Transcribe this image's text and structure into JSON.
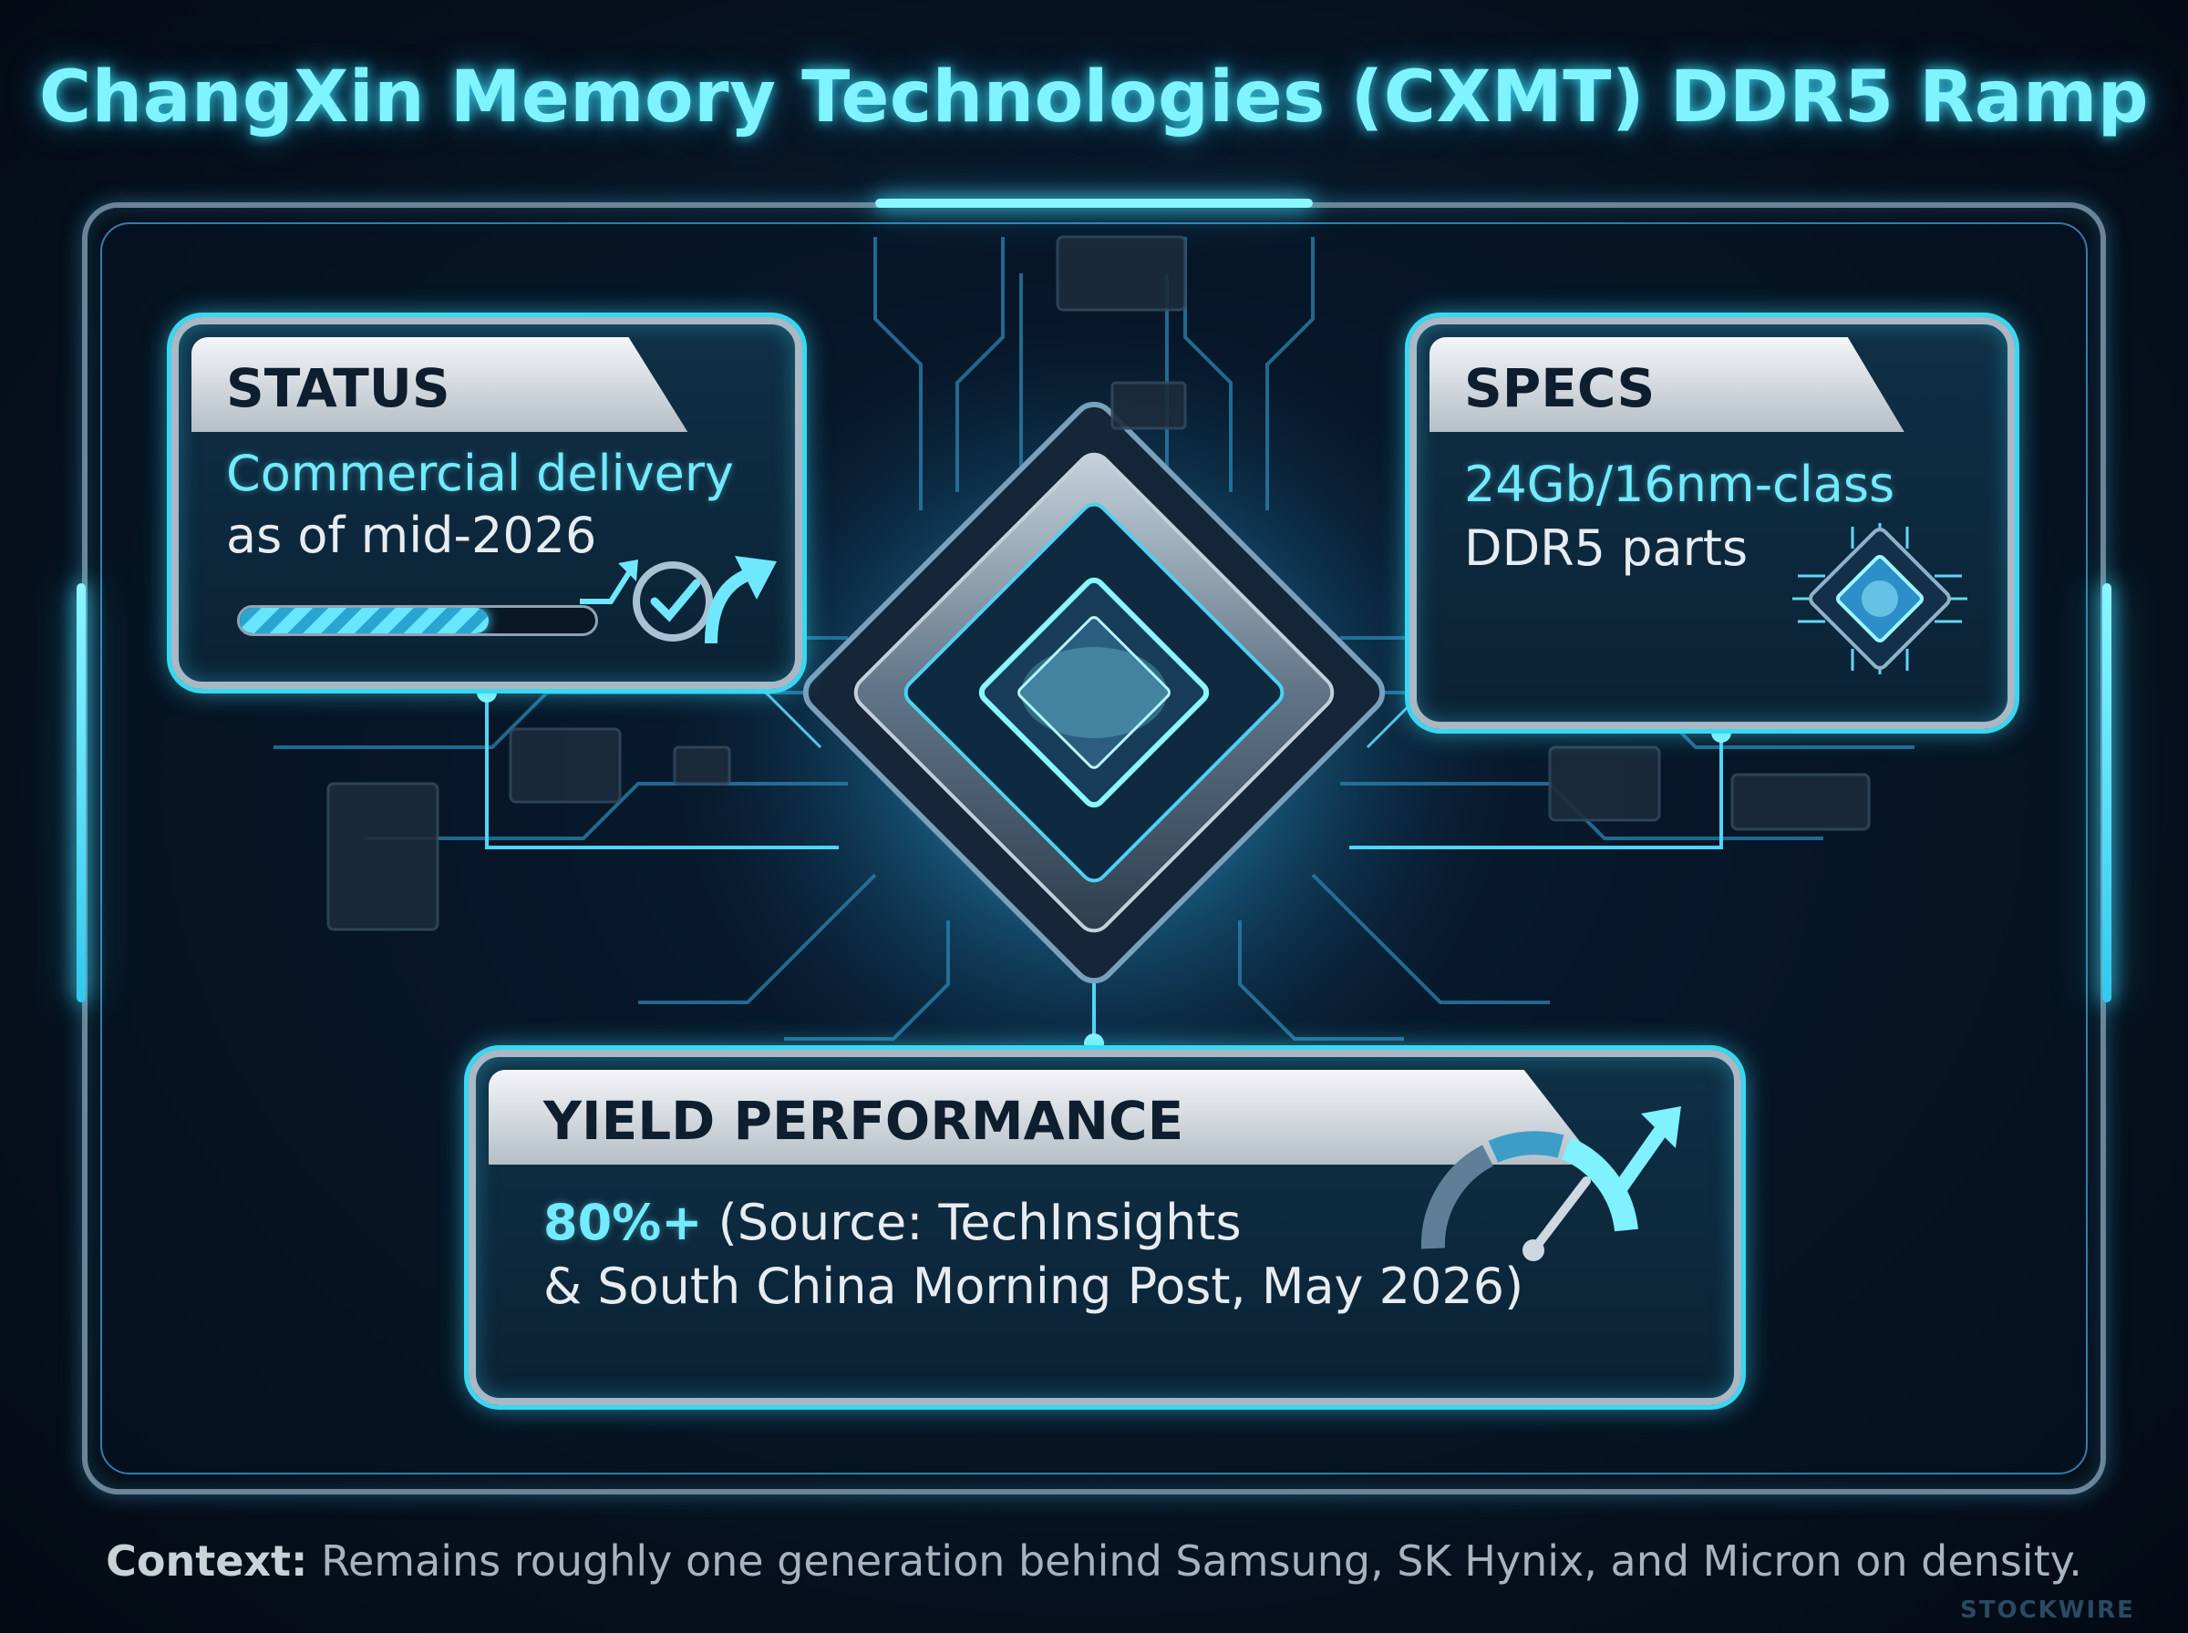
{
  "title": "ChangXin Memory Technologies (CXMT) DDR5 Ramp",
  "status_card": {
    "header": "STATUS",
    "line1": "Commercial delivery",
    "line2": "as of mid-2026",
    "icons": [
      "progress-bar",
      "check-circle-icon",
      "arrow-up-icon"
    ]
  },
  "specs_card": {
    "header": "SPECS",
    "line1": "24Gb/16nm-class",
    "line2": "DDR5 parts",
    "icon": "chip-icon"
  },
  "yield_card": {
    "header": "YIELD PERFORMANCE",
    "value": "80%+",
    "source_part1": " (Source: TechInsights",
    "source_part2": "& South China Morning Post, May 2026)",
    "icon": "gauge-icon"
  },
  "footer": {
    "label": "Context:",
    "text": " Remains roughly one generation behind Samsung, SK Hynix, and Micron on density."
  },
  "watermark": "STOCKWIRE",
  "colors": {
    "accent": "#72eaff",
    "glow": "#38d8f2",
    "background": "#06101d",
    "header_silver": "#cdd4da"
  }
}
